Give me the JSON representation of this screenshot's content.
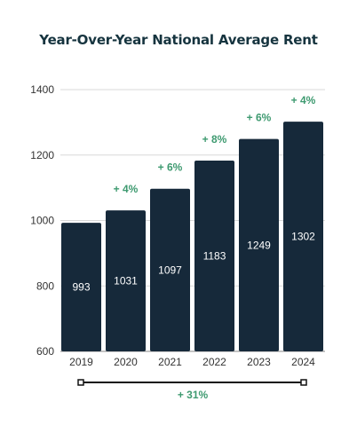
{
  "chart_data": {
    "type": "bar",
    "title": "Year-Over-Year National Average Rent",
    "categories": [
      "2019",
      "2020",
      "2021",
      "2022",
      "2023",
      "2024"
    ],
    "values": [
      993,
      1031,
      1097,
      1183,
      1249,
      1302
    ],
    "value_labels": [
      "993",
      "1031",
      "1097",
      "1183",
      "1249",
      "1302"
    ],
    "change_labels": [
      "",
      "+ 4%",
      "+ 6%",
      "+ 8%",
      "+ 6%",
      "+ 4%"
    ],
    "total_change_label": "+ 31%",
    "ylim": [
      600,
      1400
    ],
    "yticks": [
      600,
      800,
      1000,
      1200,
      1400
    ],
    "grid": true,
    "colors": {
      "bar": "#16293a",
      "change": "#3e9a70",
      "title": "#16343f",
      "grid": "#d9d9d9",
      "text": "#333333"
    }
  }
}
